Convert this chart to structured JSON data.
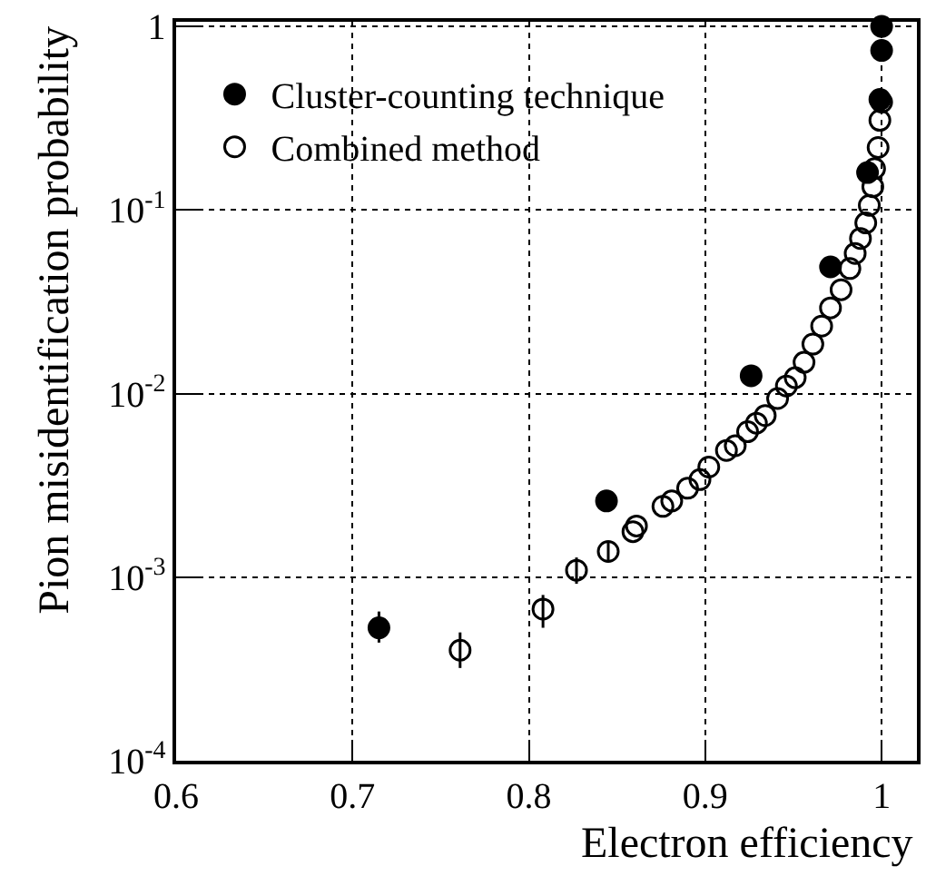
{
  "chart_data": {
    "type": "scatter",
    "xlabel": "Electron efficiency",
    "ylabel": "Pion misidentification probability",
    "log": "y",
    "xlim": [
      0.6,
      1.02
    ],
    "xticks": [
      0.6,
      0.7,
      0.8,
      0.9,
      {
        "value": 1.0,
        "label": "1"
      }
    ],
    "ylim": [
      0.0001,
      1.06
    ],
    "yticks": [
      {
        "value": 0.0001,
        "label": "10$^{-4}$"
      },
      {
        "value": 0.001,
        "label": "10$^{-3}$"
      },
      {
        "value": 0.01,
        "label": "10$^{-2}$"
      },
      {
        "value": 0.1,
        "label": "10$^{-1}$"
      },
      {
        "value": 1,
        "label": "1"
      }
    ],
    "grid": true,
    "legend": "top left",
    "series": [
      {
        "name": "Cluster-counting technique",
        "color": "#000000",
        "marker": "circle",
        "x": [
          0.715,
          0.844,
          0.926,
          0.971,
          0.992,
          0.999,
          1.0,
          1.0
        ],
        "values": [
          0.00053,
          0.0026,
          0.0125,
          0.049,
          0.16,
          0.4,
          0.74,
          1.0
        ],
        "errors": [
          [
            0.00044,
            0.00065
          ],
          null,
          null,
          null,
          null,
          null,
          null,
          null
        ]
      },
      {
        "name": "Combined method",
        "color": "#000000",
        "marker": "circle-open",
        "x": [
          0.761,
          0.808,
          0.827,
          0.845,
          0.859,
          0.861,
          0.876,
          0.881,
          0.89,
          0.897,
          0.902,
          0.912,
          0.917,
          0.924,
          0.929,
          0.934,
          0.941,
          0.946,
          0.951,
          0.956,
          0.961,
          0.966,
          0.971,
          0.977,
          0.982,
          0.985,
          0.988,
          0.991,
          0.993,
          0.995,
          0.996,
          0.998,
          0.999,
          1.0
        ],
        "values": [
          0.0004,
          0.00067,
          0.00109,
          0.00138,
          0.00177,
          0.0019,
          0.00243,
          0.0026,
          0.00305,
          0.0034,
          0.00398,
          0.0049,
          0.0052,
          0.0062,
          0.0069,
          0.0076,
          0.0094,
          0.011,
          0.0122,
          0.0148,
          0.0186,
          0.0233,
          0.0293,
          0.0368,
          0.048,
          0.058,
          0.07,
          0.085,
          0.106,
          0.134,
          0.168,
          0.219,
          0.308,
          0.387
        ],
        "errors": [
          [
            0.00032,
            0.0005
          ],
          [
            0.00053,
            0.0008
          ],
          [
            0.00092,
            0.00128
          ],
          [
            0.00122,
            0.00155
          ],
          null,
          null,
          null,
          null,
          null,
          null,
          null,
          null,
          null,
          null,
          null,
          null,
          null,
          null,
          null,
          null,
          null,
          null,
          null,
          null,
          null,
          null,
          null,
          null,
          null,
          null,
          null,
          null,
          null,
          null
        ]
      }
    ]
  }
}
